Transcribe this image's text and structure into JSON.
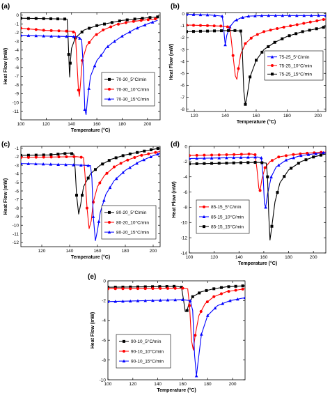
{
  "figure": {
    "panel_labels": [
      "(a)",
      "(b)",
      "(c)",
      "(d)",
      "(e)"
    ]
  },
  "chart_data": [
    {
      "panel": "(a)",
      "type": "line",
      "xlabel": "Temperature (°C)",
      "ylabel": "Heat Flow (mW)",
      "xlim": [
        100,
        210
      ],
      "ylim": [
        -12,
        0.3
      ],
      "xticks": [
        100,
        120,
        140,
        160,
        180,
        200
      ],
      "yticks": [
        0,
        -1,
        -2,
        -3,
        -4,
        -5,
        -6,
        -7,
        -8,
        -9,
        -10,
        -11
      ],
      "legend_position": "bottom-right",
      "series": [
        {
          "name": "70-30_5°C/min",
          "color": "#000000",
          "marker": "square",
          "x": [
            100,
            120,
            136.5,
            137,
            137.8,
            138.3,
            138.6,
            139,
            140,
            143,
            150,
            160,
            170,
            180,
            190,
            200,
            208
          ],
          "y": [
            -0.35,
            -0.4,
            -0.45,
            -1.5,
            -4.5,
            -6.5,
            -7.1,
            -5.5,
            -3.8,
            -2.6,
            -1.7,
            -1.2,
            -0.9,
            -0.6,
            -0.45,
            -0.3,
            -0.2
          ]
        },
        {
          "name": "70-30_10°C/min",
          "color": "#ff0000",
          "marker": "circle",
          "x": [
            100,
            120,
            140,
            143,
            144.5,
            145.5,
            146.2,
            147,
            148.5,
            152,
            158,
            165,
            175,
            185,
            195,
            208
          ],
          "y": [
            -1.5,
            -1.75,
            -1.85,
            -2.0,
            -6.0,
            -8.6,
            -9.3,
            -8.0,
            -5.2,
            -3.5,
            -2.4,
            -1.7,
            -1.1,
            -0.8,
            -0.6,
            -0.4
          ]
        },
        {
          "name": "70-30_15°C/min",
          "color": "#0000ff",
          "marker": "triangle",
          "x": [
            100,
            120,
            140,
            145,
            148,
            149.5,
            150.5,
            151.5,
            152.5,
            155,
            160,
            165,
            167,
            172,
            180,
            190,
            200,
            208
          ],
          "y": [
            -2.3,
            -2.4,
            -2.45,
            -2.5,
            -2.8,
            -6.5,
            -10.8,
            -11.4,
            -9.8,
            -7.0,
            -5.2,
            -4.3,
            -3.8,
            -3.2,
            -2.4,
            -1.6,
            -1.0,
            -0.6
          ]
        }
      ]
    },
    {
      "panel": "(b)",
      "type": "line",
      "xlabel": "Temperature (°C)",
      "ylabel": "Heat Flow (mW)",
      "xlim": [
        115,
        205
      ],
      "ylim": [
        -8.2,
        0.1
      ],
      "xticks": [
        120,
        140,
        160,
        180,
        200
      ],
      "yticks": [
        0,
        -1,
        -2,
        -3,
        -4,
        -5,
        -6,
        -7,
        -8
      ],
      "legend_position": "right",
      "series": [
        {
          "name": "75-25_5°C/min",
          "color": "#0000ff",
          "marker": "triangle",
          "x": [
            115,
            130,
            138,
            138.7,
            139.5,
            140,
            141,
            143,
            146,
            150,
            155,
            165,
            180,
            205
          ],
          "y": [
            -0.05,
            -0.1,
            -0.2,
            -0.8,
            -2.0,
            -2.6,
            -1.8,
            -1.1,
            -0.6,
            -0.35,
            -0.2,
            -0.15,
            -0.15,
            -0.15
          ]
        },
        {
          "name": "75-25_10°C/min",
          "color": "#ff0000",
          "marker": "circle",
          "x": [
            115,
            130,
            140,
            143,
            145,
            146.5,
            147.5,
            148.5,
            150,
            153,
            158,
            165,
            175,
            185,
            195,
            205
          ],
          "y": [
            -0.95,
            -1.0,
            -1.05,
            -1.15,
            -3.5,
            -5.2,
            -5.5,
            -4.6,
            -3.4,
            -2.5,
            -1.9,
            -1.5,
            -1.2,
            -0.95,
            -0.7,
            -0.45
          ]
        },
        {
          "name": "75-25_15°C/min",
          "color": "#000000",
          "marker": "square",
          "x": [
            115,
            130,
            145,
            150,
            151,
            152,
            153,
            154,
            156,
            160,
            165,
            172,
            180,
            190,
            205
          ],
          "y": [
            -1.5,
            -1.45,
            -1.4,
            -1.45,
            -3.0,
            -6.5,
            -7.6,
            -7.0,
            -5.3,
            -3.9,
            -3.0,
            -2.4,
            -1.9,
            -1.5,
            -1.1
          ]
        }
      ]
    },
    {
      "panel": "(c)",
      "type": "line",
      "xlabel": "Temperature (°C)",
      "ylabel": "Heat Flow (mW)",
      "xlim": [
        105,
        205
      ],
      "ylim": [
        -12.5,
        -0.8
      ],
      "xticks": [
        120,
        140,
        160,
        180,
        200
      ],
      "yticks": [
        -1,
        -2,
        -3,
        -4,
        -5,
        -6,
        -7,
        -8,
        -9,
        -10,
        -11,
        -12
      ],
      "legend_position": "bottom-right",
      "series": [
        {
          "name": "80-20_5°C/min",
          "color": "#000000",
          "marker": "square",
          "x": [
            105,
            125,
            140,
            143,
            144,
            145,
            146.5,
            148,
            150,
            155,
            162,
            170,
            180,
            192,
            205
          ],
          "y": [
            -1.85,
            -1.8,
            -1.6,
            -1.7,
            -3.5,
            -6.5,
            -8.7,
            -7.5,
            -5.5,
            -4.0,
            -3.0,
            -2.3,
            -1.8,
            -1.4,
            -1.0
          ]
        },
        {
          "name": "80-20_10°C/min",
          "color": "#ff0000",
          "marker": "circle",
          "x": [
            105,
            125,
            145,
            150,
            151,
            152.5,
            154,
            155.5,
            157,
            160,
            165,
            172,
            180,
            190,
            205
          ],
          "y": [
            -2.1,
            -2.05,
            -2.0,
            -2.1,
            -4.0,
            -8.0,
            -10.4,
            -9.5,
            -7.3,
            -5.5,
            -4.2,
            -3.2,
            -2.5,
            -1.9,
            -1.4
          ]
        },
        {
          "name": "80-20_15°C/min",
          "color": "#0000ff",
          "marker": "triangle",
          "x": [
            105,
            130,
            150,
            155,
            156,
            157,
            158.5,
            160,
            162,
            166,
            172,
            180,
            190,
            200,
            205
          ],
          "y": [
            -2.8,
            -2.9,
            -3.0,
            -3.05,
            -4.5,
            -9.0,
            -11.8,
            -10.6,
            -8.5,
            -6.4,
            -4.8,
            -3.6,
            -2.6,
            -1.9,
            -1.6
          ]
        }
      ]
    },
    {
      "panel": "(d)",
      "type": "line",
      "xlabel": "Temperature (°C)",
      "ylabel": "Heat Flow (mW)",
      "xlim": [
        100,
        210
      ],
      "ylim": [
        -14,
        0
      ],
      "xticks": [
        100,
        120,
        140,
        160,
        180,
        200
      ],
      "yticks": [
        0,
        -2,
        -4,
        -6,
        -8,
        -10,
        -12,
        -14
      ],
      "legend_position": "left",
      "series": [
        {
          "name": "85-15_5°C/min",
          "color": "#ff0000",
          "marker": "circle",
          "x": [
            100,
            130,
            150,
            153,
            154.5,
            156,
            157,
            158.5,
            161,
            165,
            172,
            182,
            195,
            210
          ],
          "y": [
            -1.2,
            -1.1,
            -1.0,
            -1.1,
            -3.0,
            -5.5,
            -5.8,
            -4.3,
            -2.8,
            -2.0,
            -1.4,
            -1.1,
            -0.9,
            -0.75
          ]
        },
        {
          "name": "85-15_10°C/min",
          "color": "#0000ff",
          "marker": "triangle",
          "x": [
            100,
            130,
            155,
            158,
            159.5,
            160.5,
            161.5,
            163,
            166,
            170,
            178,
            190,
            210
          ],
          "y": [
            -1.6,
            -1.5,
            -1.4,
            -1.5,
            -4.0,
            -7.5,
            -8.0,
            -6.3,
            -4.0,
            -2.7,
            -1.8,
            -1.2,
            -0.8
          ]
        },
        {
          "name": "85-15_15°C/min",
          "color": "#000000",
          "marker": "square",
          "x": [
            100,
            130,
            155,
            162,
            163,
            164,
            165,
            166.5,
            169,
            173,
            180,
            190,
            200,
            210
          ],
          "y": [
            -2.3,
            -2.2,
            -2.1,
            -2.2,
            -4.0,
            -9.0,
            -12.3,
            -10.5,
            -7.3,
            -4.8,
            -3.1,
            -2.0,
            -1.4,
            -1.0
          ]
        }
      ]
    },
    {
      "panel": "(e)",
      "type": "line",
      "xlabel": "Temperature (°C)",
      "ylabel": "Heat Flow (mW)",
      "xlim": [
        100,
        210
      ],
      "ylim": [
        -10,
        0
      ],
      "xticks": [
        100,
        120,
        140,
        160,
        180,
        200
      ],
      "yticks": [
        0,
        -2,
        -4,
        -6,
        -8,
        -10
      ],
      "legend_position": "left",
      "series": [
        {
          "name": "90-10_5°C/min",
          "color": "#000000",
          "marker": "square",
          "x": [
            100,
            130,
            155,
            159,
            160.5,
            162,
            163.5,
            165,
            168,
            175,
            185,
            195,
            210
          ],
          "y": [
            -0.65,
            -0.6,
            -0.55,
            -0.65,
            -1.8,
            -3.1,
            -3.0,
            -2.3,
            -1.6,
            -1.1,
            -0.8,
            -0.6,
            -0.5
          ]
        },
        {
          "name": "90-10_10°C/min",
          "color": "#ff0000",
          "marker": "circle",
          "x": [
            100,
            130,
            160,
            164,
            165.5,
            167,
            168.5,
            170,
            173,
            178,
            185,
            195,
            210
          ],
          "y": [
            -0.8,
            -0.78,
            -0.75,
            -0.8,
            -2.5,
            -6.0,
            -7.0,
            -5.5,
            -3.5,
            -2.3,
            -1.6,
            -1.1,
            -0.8
          ]
        },
        {
          "name": "90-10_15°C/min",
          "color": "#0000ff",
          "marker": "triangle",
          "x": [
            100,
            130,
            160,
            166,
            168,
            169.5,
            171,
            172.5,
            175,
            180,
            188,
            198,
            210
          ],
          "y": [
            -2.1,
            -2.0,
            -1.9,
            -2.0,
            -3.0,
            -7.5,
            -9.6,
            -8.0,
            -5.4,
            -3.5,
            -2.5,
            -2.0,
            -1.7
          ]
        }
      ]
    }
  ]
}
